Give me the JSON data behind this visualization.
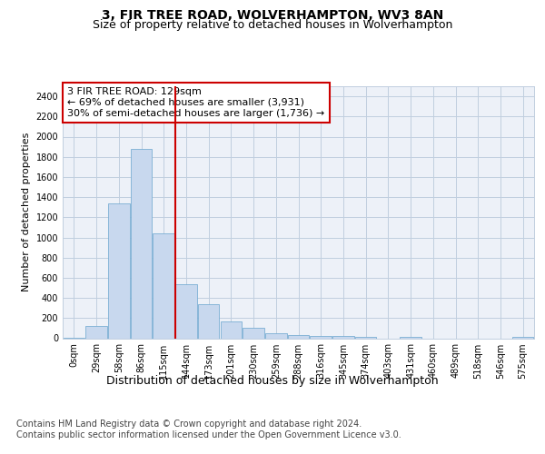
{
  "title": "3, FIR TREE ROAD, WOLVERHAMPTON, WV3 8AN",
  "subtitle": "Size of property relative to detached houses in Wolverhampton",
  "xlabel": "Distribution of detached houses by size in Wolverhampton",
  "ylabel": "Number of detached properties",
  "footer_line1": "Contains HM Land Registry data © Crown copyright and database right 2024.",
  "footer_line2": "Contains public sector information licensed under the Open Government Licence v3.0.",
  "bar_labels": [
    "0sqm",
    "29sqm",
    "58sqm",
    "86sqm",
    "115sqm",
    "144sqm",
    "173sqm",
    "201sqm",
    "230sqm",
    "259sqm",
    "288sqm",
    "316sqm",
    "345sqm",
    "374sqm",
    "403sqm",
    "431sqm",
    "460sqm",
    "489sqm",
    "518sqm",
    "546sqm",
    "575sqm"
  ],
  "bar_values": [
    5,
    120,
    1340,
    1880,
    1040,
    540,
    340,
    170,
    100,
    50,
    30,
    20,
    20,
    10,
    0,
    10,
    0,
    0,
    0,
    0,
    10
  ],
  "bar_color": "#c8d8ee",
  "bar_edge_color": "#7bafd4",
  "grid_color": "#c0cedf",
  "bg_color": "#edf1f8",
  "annotation_text": "3 FIR TREE ROAD: 129sqm\n← 69% of detached houses are smaller (3,931)\n30% of semi-detached houses are larger (1,736) →",
  "annotation_box_color": "#ffffff",
  "annotation_box_edge": "#cc0000",
  "red_line_x": 4.5,
  "red_line_color": "#cc0000",
  "ylim": [
    0,
    2500
  ],
  "yticks": [
    0,
    200,
    400,
    600,
    800,
    1000,
    1200,
    1400,
    1600,
    1800,
    2000,
    2200,
    2400
  ],
  "title_fontsize": 10,
  "subtitle_fontsize": 9,
  "xlabel_fontsize": 9,
  "ylabel_fontsize": 8,
  "tick_fontsize": 7,
  "annotation_fontsize": 8,
  "footer_fontsize": 7
}
